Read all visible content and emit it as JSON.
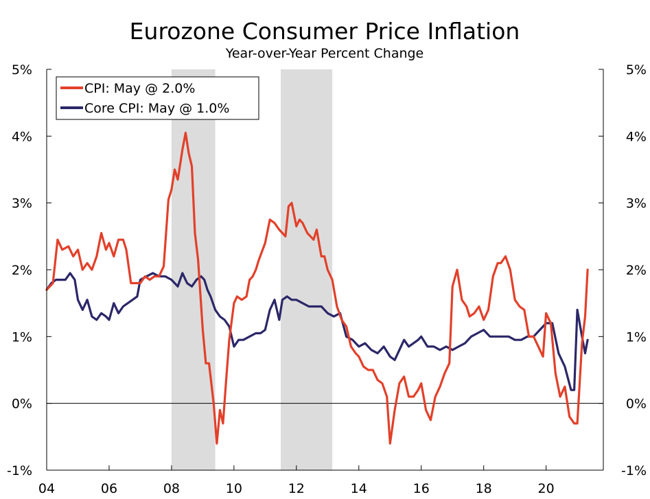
{
  "chart_data": {
    "type": "line",
    "title": "Eurozone Consumer Price Inflation",
    "subtitle": "Year-over-Year Percent Change",
    "xlabel": "",
    "ylabel": "",
    "xlim": [
      2004.0,
      2021.833
    ],
    "ylim": [
      -1,
      5
    ],
    "y_ticks": [
      -1,
      0,
      1,
      2,
      3,
      4,
      5
    ],
    "y_tick_labels": [
      "-1%",
      "0%",
      "1%",
      "2%",
      "3%",
      "4%",
      "5%"
    ],
    "x_ticks": [
      2004,
      2006,
      2008,
      2010,
      2012,
      2014,
      2016,
      2018,
      2020
    ],
    "x_tick_labels": [
      "04",
      "06",
      "08",
      "10",
      "12",
      "14",
      "16",
      "18",
      "20"
    ],
    "shaded_periods": [
      [
        2008.0,
        2009.4
      ],
      [
        2011.5,
        2013.15
      ]
    ],
    "colors": {
      "cpi": "#e2402a",
      "core": "#2b2768",
      "shade": "#dcdcdc",
      "zero_line": "#000000"
    },
    "series": [
      {
        "name": "CPI: May @ 2.0%",
        "color": "#e2402a",
        "x": [
          2004.0,
          2004.2,
          2004.35,
          2004.5,
          2004.7,
          2004.85,
          2005.0,
          2005.15,
          2005.3,
          2005.45,
          2005.6,
          2005.75,
          2005.9,
          2006.0,
          2006.15,
          2006.3,
          2006.45,
          2006.55,
          2006.7,
          2006.85,
          2007.0,
          2007.15,
          2007.3,
          2007.45,
          2007.6,
          2007.75,
          2007.9,
          2008.0,
          2008.1,
          2008.2,
          2008.3,
          2008.35,
          2008.45,
          2008.55,
          2008.65,
          2008.75,
          2008.85,
          2009.0,
          2009.1,
          2009.2,
          2009.35,
          2009.45,
          2009.55,
          2009.65,
          2009.75,
          2009.85,
          2010.0,
          2010.1,
          2010.25,
          2010.4,
          2010.5,
          2010.6,
          2010.7,
          2010.8,
          2011.0,
          2011.15,
          2011.3,
          2011.45,
          2011.55,
          2011.65,
          2011.75,
          2011.85,
          2012.0,
          2012.1,
          2012.2,
          2012.35,
          2012.45,
          2012.55,
          2012.65,
          2012.8,
          2012.9,
          2013.0,
          2013.15,
          2013.3,
          2013.45,
          2013.6,
          2013.75,
          2013.9,
          2014.0,
          2014.15,
          2014.3,
          2014.45,
          2014.6,
          2014.75,
          2014.9,
          2015.0,
          2015.15,
          2015.3,
          2015.45,
          2015.6,
          2015.75,
          2015.9,
          2016.0,
          2016.15,
          2016.3,
          2016.45,
          2016.6,
          2016.75,
          2016.9,
          2017.0,
          2017.15,
          2017.3,
          2017.45,
          2017.55,
          2017.7,
          2017.85,
          2018.0,
          2018.15,
          2018.3,
          2018.45,
          2018.55,
          2018.7,
          2018.85,
          2019.0,
          2019.15,
          2019.3,
          2019.45,
          2019.6,
          2019.75,
          2019.9,
          2020.0,
          2020.15,
          2020.3,
          2020.45,
          2020.6,
          2020.75,
          2020.9,
          2021.0,
          2021.15,
          2021.25,
          2021.33
        ],
        "values": [
          1.7,
          1.8,
          2.45,
          2.3,
          2.35,
          2.2,
          2.3,
          2.0,
          2.1,
          2.0,
          2.2,
          2.55,
          2.3,
          2.4,
          2.2,
          2.45,
          2.45,
          2.3,
          1.8,
          1.8,
          1.8,
          1.9,
          1.85,
          1.9,
          1.9,
          2.05,
          3.05,
          3.2,
          3.5,
          3.35,
          3.65,
          3.8,
          4.05,
          3.75,
          3.55,
          2.55,
          2.15,
          1.1,
          0.6,
          0.6,
          0.0,
          -0.6,
          -0.1,
          -0.3,
          0.35,
          0.95,
          1.5,
          1.6,
          1.55,
          1.6,
          1.85,
          1.9,
          2.0,
          2.15,
          2.4,
          2.75,
          2.7,
          2.6,
          2.55,
          2.5,
          2.95,
          3.0,
          2.65,
          2.75,
          2.7,
          2.55,
          2.5,
          2.45,
          2.6,
          2.2,
          2.2,
          2.0,
          1.85,
          1.45,
          1.25,
          1.15,
          0.85,
          0.75,
          0.7,
          0.55,
          0.5,
          0.5,
          0.35,
          0.3,
          0.1,
          -0.6,
          -0.1,
          0.3,
          0.4,
          0.1,
          0.1,
          0.2,
          0.3,
          -0.1,
          -0.25,
          0.1,
          0.25,
          0.45,
          0.6,
          1.75,
          2.0,
          1.55,
          1.45,
          1.3,
          1.35,
          1.45,
          1.25,
          1.4,
          1.9,
          2.1,
          2.1,
          2.2,
          2.0,
          1.55,
          1.45,
          1.4,
          1.0,
          1.0,
          0.85,
          0.7,
          1.35,
          1.2,
          0.45,
          0.1,
          0.25,
          -0.2,
          -0.3,
          -0.3,
          0.9,
          1.3,
          2.0
        ]
      },
      {
        "name": "Core CPI: May @ 1.0%",
        "color": "#2b2768",
        "x": [
          2004.0,
          2004.15,
          2004.3,
          2004.45,
          2004.6,
          2004.75,
          2004.9,
          2005.0,
          2005.15,
          2005.3,
          2005.45,
          2005.6,
          2005.75,
          2005.9,
          2006.0,
          2006.15,
          2006.3,
          2006.45,
          2006.6,
          2006.75,
          2006.9,
          2007.0,
          2007.2,
          2007.4,
          2007.6,
          2007.8,
          2008.0,
          2008.2,
          2008.35,
          2008.5,
          2008.65,
          2008.8,
          2008.95,
          2009.05,
          2009.15,
          2009.25,
          2009.4,
          2009.55,
          2009.7,
          2009.85,
          2010.0,
          2010.15,
          2010.3,
          2010.5,
          2010.7,
          2010.85,
          2011.0,
          2011.15,
          2011.3,
          2011.45,
          2011.55,
          2011.7,
          2011.85,
          2012.0,
          2012.2,
          2012.4,
          2012.6,
          2012.8,
          2013.0,
          2013.2,
          2013.4,
          2013.6,
          2013.8,
          2014.0,
          2014.2,
          2014.4,
          2014.6,
          2014.8,
          2015.0,
          2015.15,
          2015.3,
          2015.45,
          2015.6,
          2015.75,
          2015.9,
          2016.0,
          2016.2,
          2016.4,
          2016.6,
          2016.8,
          2017.0,
          2017.2,
          2017.4,
          2017.6,
          2017.8,
          2018.0,
          2018.2,
          2018.4,
          2018.6,
          2018.8,
          2019.0,
          2019.2,
          2019.4,
          2019.6,
          2019.8,
          2020.0,
          2020.2,
          2020.4,
          2020.6,
          2020.8,
          2020.9,
          2021.0,
          2021.15,
          2021.25,
          2021.33
        ],
        "values": [
          1.7,
          1.8,
          1.85,
          1.85,
          1.85,
          1.95,
          1.85,
          1.55,
          1.4,
          1.55,
          1.3,
          1.25,
          1.35,
          1.3,
          1.25,
          1.5,
          1.35,
          1.45,
          1.5,
          1.55,
          1.6,
          1.85,
          1.9,
          1.95,
          1.9,
          1.9,
          1.85,
          1.75,
          1.95,
          1.8,
          1.75,
          1.85,
          1.9,
          1.85,
          1.7,
          1.6,
          1.4,
          1.3,
          1.25,
          1.15,
          0.85,
          0.95,
          0.95,
          1.0,
          1.05,
          1.05,
          1.1,
          1.4,
          1.55,
          1.25,
          1.55,
          1.6,
          1.55,
          1.55,
          1.5,
          1.45,
          1.45,
          1.45,
          1.35,
          1.3,
          1.35,
          1.0,
          0.95,
          0.85,
          0.9,
          0.8,
          0.75,
          0.85,
          0.7,
          0.65,
          0.8,
          0.95,
          0.85,
          0.9,
          0.95,
          1.0,
          0.85,
          0.85,
          0.8,
          0.85,
          0.8,
          0.85,
          0.9,
          1.0,
          1.05,
          1.1,
          1.0,
          1.0,
          1.0,
          1.0,
          0.95,
          0.95,
          1.0,
          1.0,
          1.1,
          1.2,
          1.2,
          0.75,
          0.55,
          0.2,
          0.2,
          1.4,
          1.0,
          0.75,
          0.95
        ]
      }
    ],
    "legend": {
      "position": "top-left"
    }
  }
}
